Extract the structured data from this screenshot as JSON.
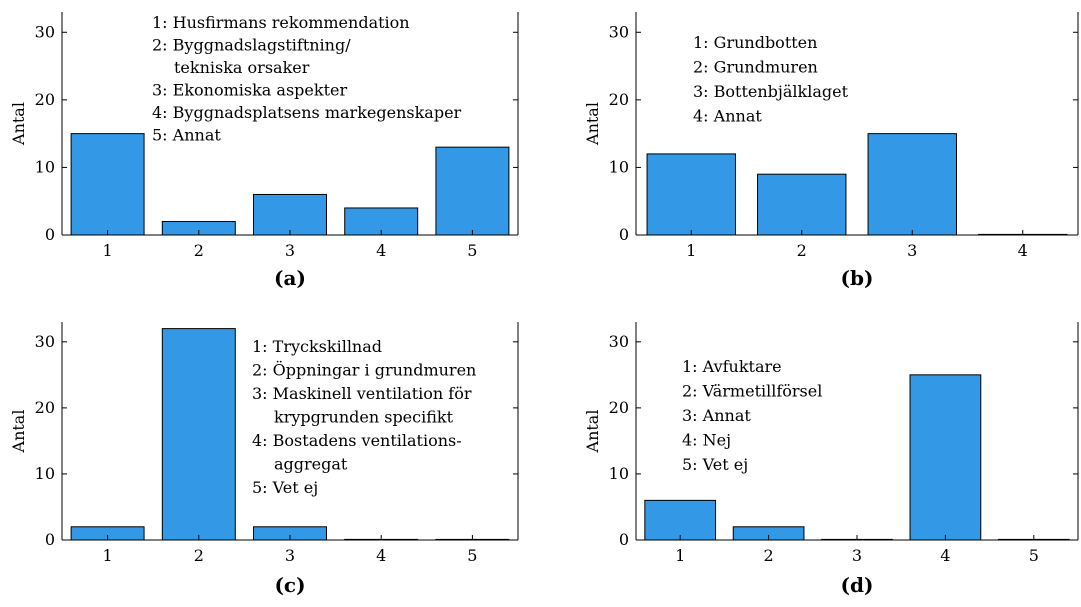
{
  "style": {
    "bar_color": "#3399e6",
    "bar_edge": "#000000"
  },
  "chart_data": [
    {
      "type": "bar",
      "caption": "(a)",
      "ylabel": "Antal",
      "ylim": [
        0,
        33
      ],
      "yticks": [
        "0",
        "10",
        "20",
        "30"
      ],
      "categories": [
        "1",
        "2",
        "3",
        "4",
        "5"
      ],
      "values": [
        15,
        2,
        6,
        4,
        13
      ],
      "legend": [
        "1: Husfirmans rekommendation",
        "2: Byggnadslagstiftning/",
        "tekniska orsaker",
        "3: Ekonomiska aspekter",
        "4: Byggnadsplatsens markegenskaper",
        "5: Annat"
      ]
    },
    {
      "type": "bar",
      "caption": "(b)",
      "ylabel": "Antal",
      "ylim": [
        0,
        33
      ],
      "yticks": [
        "0",
        "10",
        "20",
        "30"
      ],
      "categories": [
        "1",
        "2",
        "3",
        "4"
      ],
      "values": [
        12,
        9,
        15,
        0
      ],
      "legend": [
        "1: Grundbotten",
        "2: Grundmuren",
        "3: Bottenbjälklaget",
        "4: Annat"
      ]
    },
    {
      "type": "bar",
      "caption": "(c)",
      "ylabel": "Antal",
      "ylim": [
        0,
        33
      ],
      "yticks": [
        "0",
        "10",
        "20",
        "30"
      ],
      "categories": [
        "1",
        "2",
        "3",
        "4",
        "5"
      ],
      "values": [
        2,
        32,
        2,
        0,
        0
      ],
      "legend": [
        "1: Tryckskillnad",
        "2: Öppningar i grundmuren",
        "3: Maskinell ventilation för",
        "krypgrunden specifikt",
        "4: Bostadens ventilations-",
        "aggregat",
        "5: Vet ej"
      ]
    },
    {
      "type": "bar",
      "caption": "(d)",
      "ylabel": "Antal",
      "ylim": [
        0,
        33
      ],
      "yticks": [
        "0",
        "10",
        "20",
        "30"
      ],
      "categories": [
        "1",
        "2",
        "3",
        "4",
        "5"
      ],
      "values": [
        6,
        2,
        0,
        25,
        0
      ],
      "legend": [
        "1: Avfuktare",
        "2: Värmetillförsel",
        "3: Annat",
        "4: Nej",
        "5: Vet ej"
      ]
    }
  ]
}
